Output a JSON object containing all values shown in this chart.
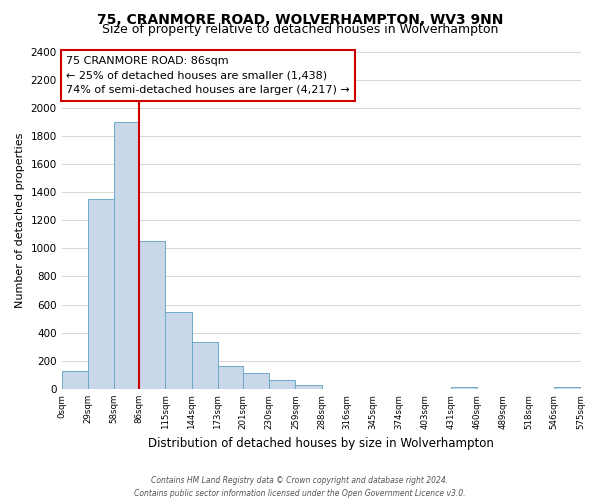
{
  "title": "75, CRANMORE ROAD, WOLVERHAMPTON, WV3 9NN",
  "subtitle": "Size of property relative to detached houses in Wolverhampton",
  "xlabel": "Distribution of detached houses by size in Wolverhampton",
  "ylabel": "Number of detached properties",
  "bin_edges": [
    0,
    29,
    58,
    86,
    115,
    144,
    173,
    201,
    230,
    259,
    288,
    316,
    345,
    374,
    403,
    431,
    460,
    489,
    518,
    546,
    575
  ],
  "bar_heights": [
    125,
    1350,
    1900,
    1050,
    550,
    335,
    160,
    110,
    60,
    30,
    0,
    0,
    0,
    0,
    0,
    15,
    0,
    0,
    0,
    15
  ],
  "bar_color": "#c8d8e8",
  "bar_edge_color": "#6fa8c8",
  "property_line_x": 86,
  "property_line_color": "#cc0000",
  "annotation_title": "75 CRANMORE ROAD: 86sqm",
  "annotation_line1": "← 25% of detached houses are smaller (1,438)",
  "annotation_line2": "74% of semi-detached houses are larger (4,217) →",
  "annotation_box_color": "#ffffff",
  "annotation_box_edge": "#cc0000",
  "ylim": [
    0,
    2400
  ],
  "yticks": [
    0,
    200,
    400,
    600,
    800,
    1000,
    1200,
    1400,
    1600,
    1800,
    2000,
    2200,
    2400
  ],
  "xtick_labels": [
    "0sqm",
    "29sqm",
    "58sqm",
    "86sqm",
    "115sqm",
    "144sqm",
    "173sqm",
    "201sqm",
    "230sqm",
    "259sqm",
    "288sqm",
    "316sqm",
    "345sqm",
    "374sqm",
    "403sqm",
    "431sqm",
    "460sqm",
    "489sqm",
    "518sqm",
    "546sqm",
    "575sqm"
  ],
  "footer1": "Contains HM Land Registry data © Crown copyright and database right 2024.",
  "footer2": "Contains public sector information licensed under the Open Government Licence v3.0.",
  "background_color": "#ffffff",
  "grid_color": "#d0d0d0",
  "title_fontsize": 10,
  "subtitle_fontsize": 9,
  "ylabel_fontsize": 8,
  "xlabel_fontsize": 8.5
}
